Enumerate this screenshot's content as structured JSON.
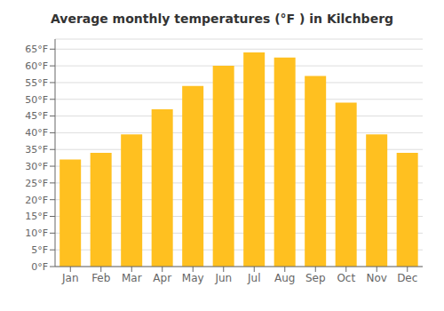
{
  "chart_data": {
    "type": "bar",
    "title": "Average monthly temperatures (°F ) in Kilchberg",
    "categories": [
      "Jan",
      "Feb",
      "Mar",
      "Apr",
      "May",
      "Jun",
      "Jul",
      "Aug",
      "Sep",
      "Oct",
      "Nov",
      "Dec"
    ],
    "values": [
      32,
      34,
      39.5,
      47,
      54,
      60,
      64,
      62.5,
      57,
      49,
      39.5,
      34
    ],
    "color": "#FFC020",
    "ylim": [
      0,
      68
    ],
    "yticks": [
      {
        "value": 0,
        "label": "0°F"
      },
      {
        "value": 5,
        "label": "5°F"
      },
      {
        "value": 10,
        "label": "10°F"
      },
      {
        "value": 15,
        "label": "15°F"
      },
      {
        "value": 20,
        "label": "20°F"
      },
      {
        "value": 25,
        "label": "25°F"
      },
      {
        "value": 30,
        "label": "30°F"
      },
      {
        "value": 35,
        "label": "35°F"
      },
      {
        "value": 40,
        "label": "40°F"
      },
      {
        "value": 45,
        "label": "45°F"
      },
      {
        "value": 50,
        "label": "50°F"
      },
      {
        "value": 55,
        "label": "55°F"
      },
      {
        "value": 60,
        "label": "60°F"
      },
      {
        "value": 65,
        "label": "65°F"
      }
    ],
    "grid": true
  }
}
